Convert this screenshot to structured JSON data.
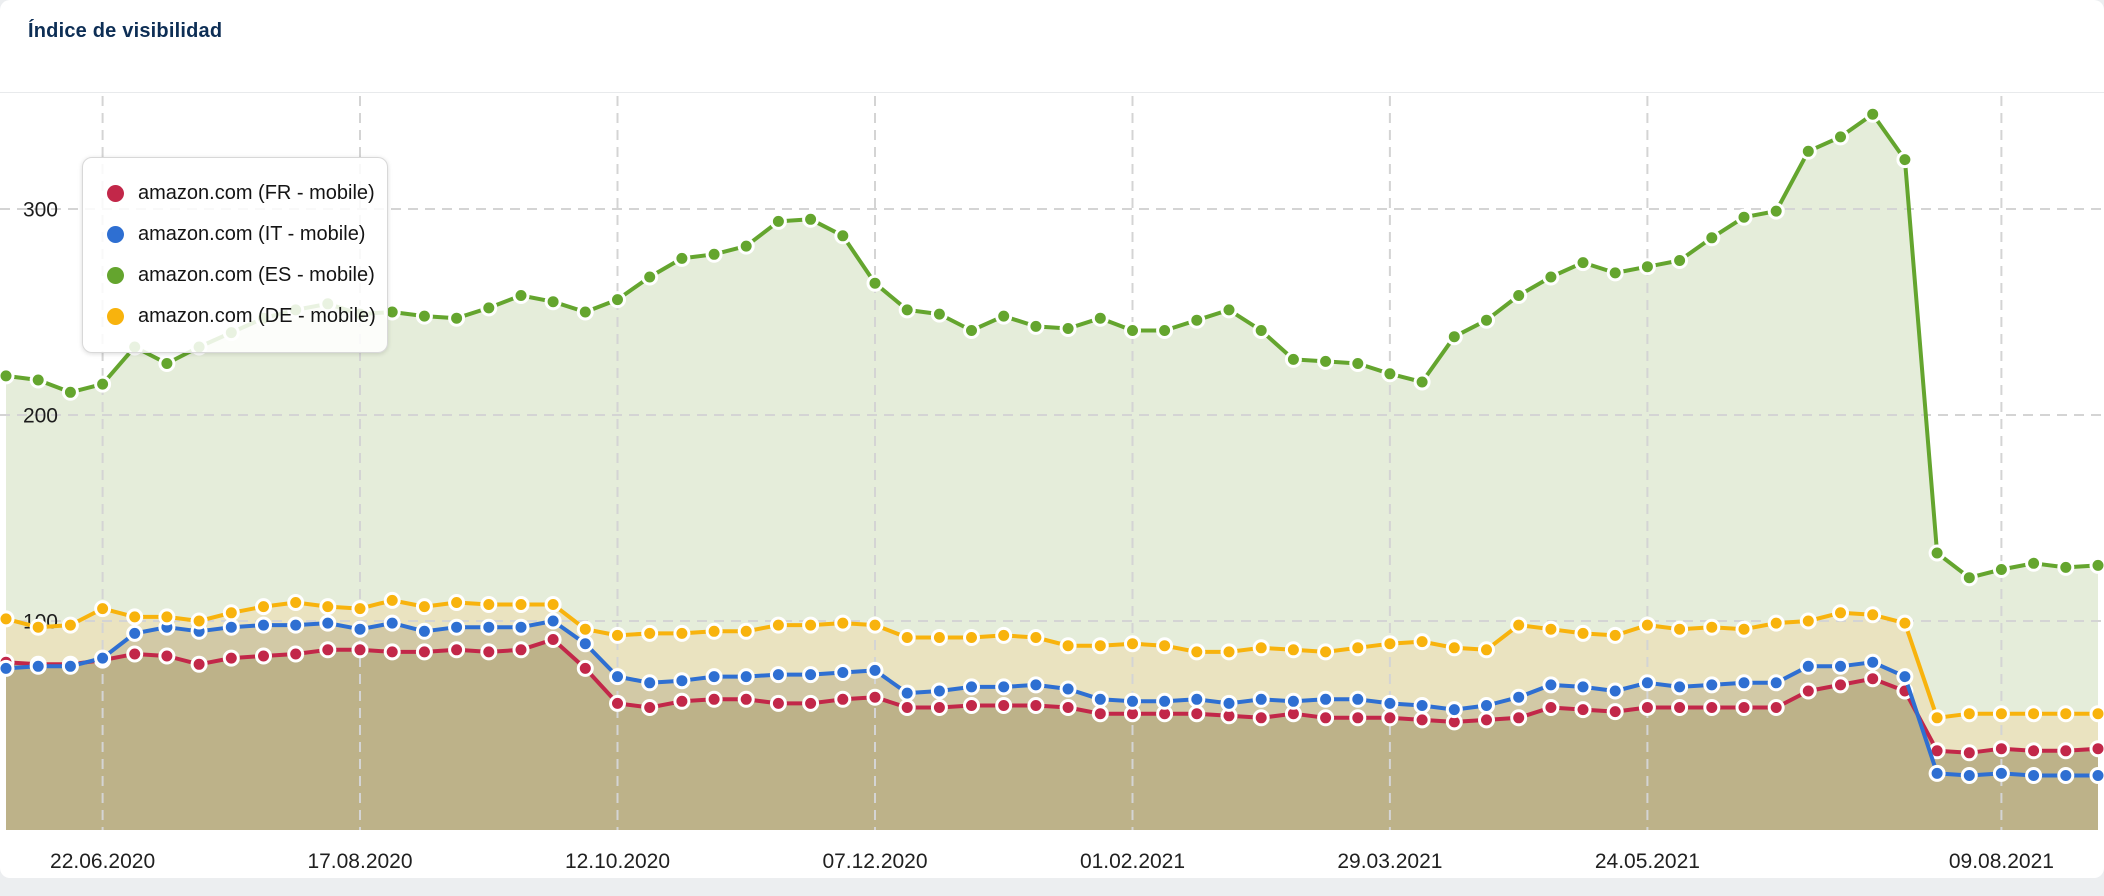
{
  "header": {
    "title": "Índice de visibilidad"
  },
  "chart_data": {
    "type": "line",
    "title": "Índice de visibilidad",
    "x_tick_labels": [
      "22.06.2020",
      "17.08.2020",
      "12.10.2020",
      "07.12.2020",
      "01.02.2021",
      "29.03.2021",
      "24.05.2021",
      "09.08.2021"
    ],
    "x_tick_indices": [
      3,
      11,
      19,
      27,
      35,
      43,
      51,
      62
    ],
    "y_ticks": [
      "100",
      "200",
      "300"
    ],
    "y_tick_values": [
      100,
      200,
      300
    ],
    "ylim": [
      0,
      380
    ],
    "grid": "dashed",
    "legend_position": "top-left",
    "point_count": 66,
    "x_unit": "weeks",
    "series": [
      {
        "id": "fr",
        "label": "amazon.com (FR - mobile)",
        "color": "#c22749",
        "area_color": "#bdb289",
        "values": [
          80,
          79,
          79,
          81,
          84,
          83,
          79,
          82,
          83,
          84,
          86,
          86,
          85,
          85,
          86,
          85,
          86,
          91,
          77,
          60,
          58,
          61,
          62,
          62,
          60,
          60,
          62,
          63,
          58,
          58,
          59,
          59,
          59,
          58,
          55,
          55,
          55,
          55,
          54,
          53,
          55,
          53,
          53,
          53,
          52,
          51,
          52,
          53,
          58,
          57,
          56,
          58,
          58,
          58,
          58,
          58,
          66,
          69,
          72,
          66,
          37,
          36,
          38,
          37,
          37,
          38
        ]
      },
      {
        "id": "it",
        "label": "amazon.com (IT - mobile)",
        "color": "#2e6fd2",
        "area_color": "#d2c9a6",
        "values": [
          77,
          78,
          78,
          82,
          94,
          97,
          95,
          97,
          98,
          98,
          99,
          96,
          99,
          95,
          97,
          97,
          97,
          100,
          89,
          73,
          70,
          71,
          73,
          73,
          74,
          74,
          75,
          76,
          65,
          66,
          68,
          68,
          69,
          67,
          62,
          61,
          61,
          62,
          60,
          62,
          61,
          62,
          62,
          60,
          59,
          57,
          59,
          63,
          69,
          68,
          66,
          70,
          68,
          69,
          70,
          70,
          78,
          78,
          80,
          73,
          26,
          25,
          26,
          25,
          25,
          25
        ]
      },
      {
        "id": "es",
        "label": "amazon.com (ES - mobile)",
        "color": "#64a52e",
        "area_color": "#e5edda",
        "values": [
          219,
          217,
          211,
          215,
          233,
          225,
          233,
          240,
          247,
          251,
          254,
          249,
          250,
          248,
          247,
          252,
          258,
          255,
          250,
          256,
          267,
          276,
          278,
          282,
          294,
          295,
          287,
          264,
          251,
          249,
          241,
          248,
          243,
          242,
          247,
          241,
          241,
          246,
          251,
          241,
          227,
          226,
          225,
          220,
          216,
          238,
          246,
          258,
          267,
          274,
          269,
          272,
          275,
          286,
          296,
          299,
          328,
          335,
          346,
          324,
          133,
          121,
          125,
          128,
          126,
          127
        ]
      },
      {
        "id": "de",
        "label": "amazon.com (DE - mobile)",
        "color": "#f8b30d",
        "area_color": "#eae3c0",
        "values": [
          101,
          97,
          98,
          106,
          102,
          102,
          100,
          104,
          107,
          109,
          107,
          106,
          110,
          107,
          109,
          108,
          108,
          108,
          96,
          93,
          94,
          94,
          95,
          95,
          98,
          98,
          99,
          98,
          92,
          92,
          92,
          93,
          92,
          88,
          88,
          89,
          88,
          85,
          85,
          87,
          86,
          85,
          87,
          89,
          90,
          87,
          86,
          98,
          96,
          94,
          93,
          98,
          96,
          97,
          96,
          99,
          100,
          104,
          103,
          99,
          53,
          55,
          55,
          55,
          55,
          55
        ]
      }
    ]
  },
  "style": {
    "grid_color": "#d4d4d4",
    "tick_text_color": "#1d1d1d",
    "baseline_y": 830,
    "line_width": 4,
    "dot_radius": 7
  }
}
